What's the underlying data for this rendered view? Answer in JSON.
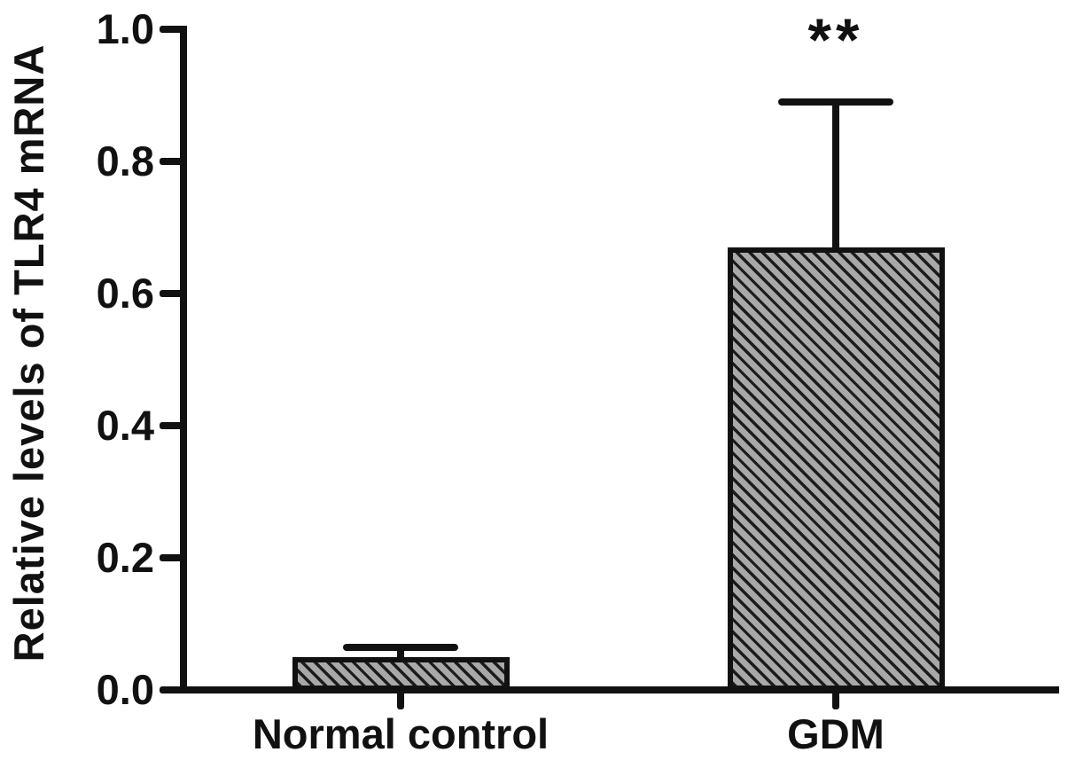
{
  "figure": {
    "background": "#ffffff",
    "ink_color": "#111111",
    "bar_fill_color": "#a8a8a8",
    "hatch_line_color": "#1c1c1c"
  },
  "chart_data": {
    "type": "bar",
    "title": "",
    "ylabel": "Relative levels of TLR4 mRNA",
    "xlabel": "",
    "categories": [
      "Normal control",
      "GDM"
    ],
    "values": [
      0.05,
      0.67
    ],
    "errors_upper": [
      0.015,
      0.22
    ],
    "significance": [
      "",
      "**"
    ],
    "ylim": [
      0,
      1.0
    ],
    "yticks": [
      "0.0",
      "0.2",
      "0.4",
      "0.6",
      "0.8",
      "1.0"
    ],
    "grid": "off",
    "legend": "none",
    "bar_hatch": "diagonal-backslash",
    "error_bars": "upper-only"
  }
}
